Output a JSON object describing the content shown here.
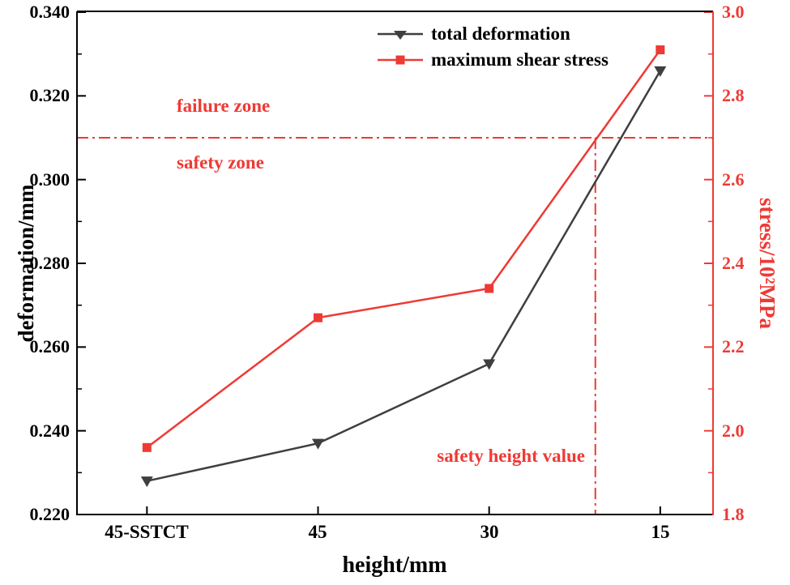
{
  "colors": {
    "accent_red": "#ee3a34",
    "series_dark": "#3f3f3f",
    "axis_black": "#000000"
  },
  "chart_data": {
    "type": "line",
    "categories": [
      "45-SSTCT",
      "45",
      "30",
      "15"
    ],
    "series": [
      {
        "name": "total deformation",
        "axis": "left",
        "marker": "triangle-down",
        "color": "#3f3f3f",
        "values": [
          0.228,
          0.237,
          0.256,
          0.326
        ]
      },
      {
        "name": "maximum shear stress",
        "axis": "right",
        "marker": "square",
        "color": "#ee3a34",
        "values": [
          1.96,
          2.27,
          2.34,
          2.91
        ]
      }
    ],
    "xlabel": "height/mm",
    "ylabel_left": "deformation/mm",
    "ylabel_right": "stress/10²MPa",
    "ylim_left": [
      0.22,
      0.34
    ],
    "ylim_right": [
      1.8,
      3.0
    ],
    "yticks_left": [
      "0.340",
      "0.320",
      "0.300",
      "0.280",
      "0.260",
      "0.240",
      "0.220"
    ],
    "yticks_right": [
      "3.0",
      "2.8",
      "2.6",
      "2.4",
      "2.2",
      "2.0",
      "1.8"
    ],
    "grid": false,
    "legend_position": "top-center",
    "annotations": {
      "failure_zone": "failure zone",
      "safety_zone": "safety zone",
      "safety_height": "safety height value",
      "hline_value_left_axis": 0.31,
      "hline_value_right_axis": 2.7,
      "vline_plot_fraction": 0.815
    }
  }
}
